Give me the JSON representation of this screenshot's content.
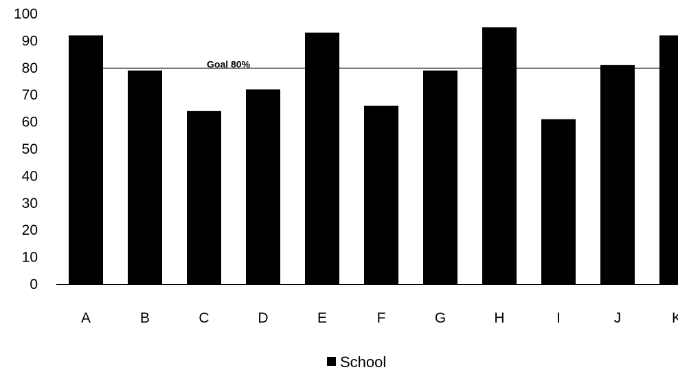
{
  "chart_data": {
    "type": "bar",
    "title": "",
    "xlabel": "",
    "ylabel": "",
    "categories": [
      "A",
      "B",
      "C",
      "D",
      "E",
      "F",
      "G",
      "H",
      "I",
      "J",
      "K"
    ],
    "series": [
      {
        "name": "School",
        "color": "#000000",
        "values": [
          92,
          79,
          64,
          72,
          93,
          66,
          79,
          95,
          61,
          81,
          92
        ]
      }
    ],
    "ylim": [
      0,
      100
    ],
    "yticks": [
      "0",
      "10",
      "20",
      "30",
      "40",
      "50",
      "60",
      "70",
      "80",
      "90",
      "100"
    ],
    "grid": false,
    "goal_line": {
      "value": 80,
      "label": "Goal 80%",
      "color": "#000000"
    },
    "legend": {
      "position": "bottom",
      "entries": [
        "School"
      ]
    }
  }
}
